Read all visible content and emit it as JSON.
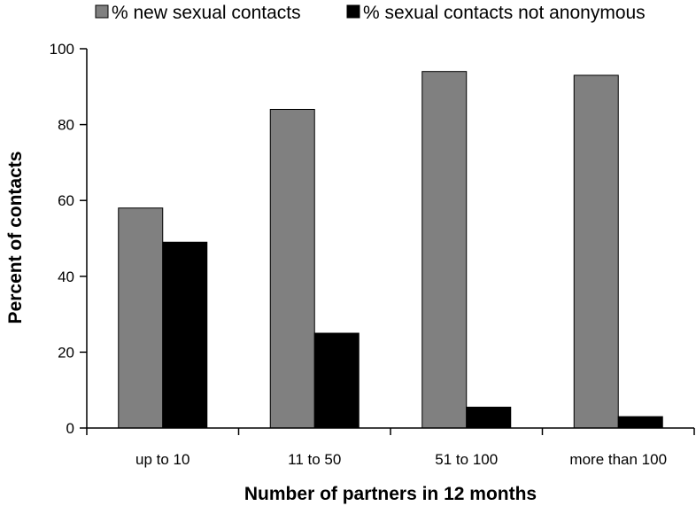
{
  "chart_data": {
    "type": "bar",
    "categories": [
      "up to 10",
      "11 to 50",
      "51 to 100",
      "more than 100"
    ],
    "series": [
      {
        "name": "% new sexual contacts",
        "values": [
          58,
          84,
          94,
          93
        ],
        "color": "#808080"
      },
      {
        "name": "% sexual contacts not anonymous",
        "values": [
          49,
          25,
          5.5,
          3
        ],
        "color": "#000000"
      }
    ],
    "xlabel": "Number of partners in 12 months",
    "ylabel": "Percent of contacts",
    "ylim": [
      0,
      100
    ],
    "yticks": [
      0,
      20,
      40,
      60,
      80,
      100
    ],
    "grid": false,
    "legend_position": "top"
  }
}
